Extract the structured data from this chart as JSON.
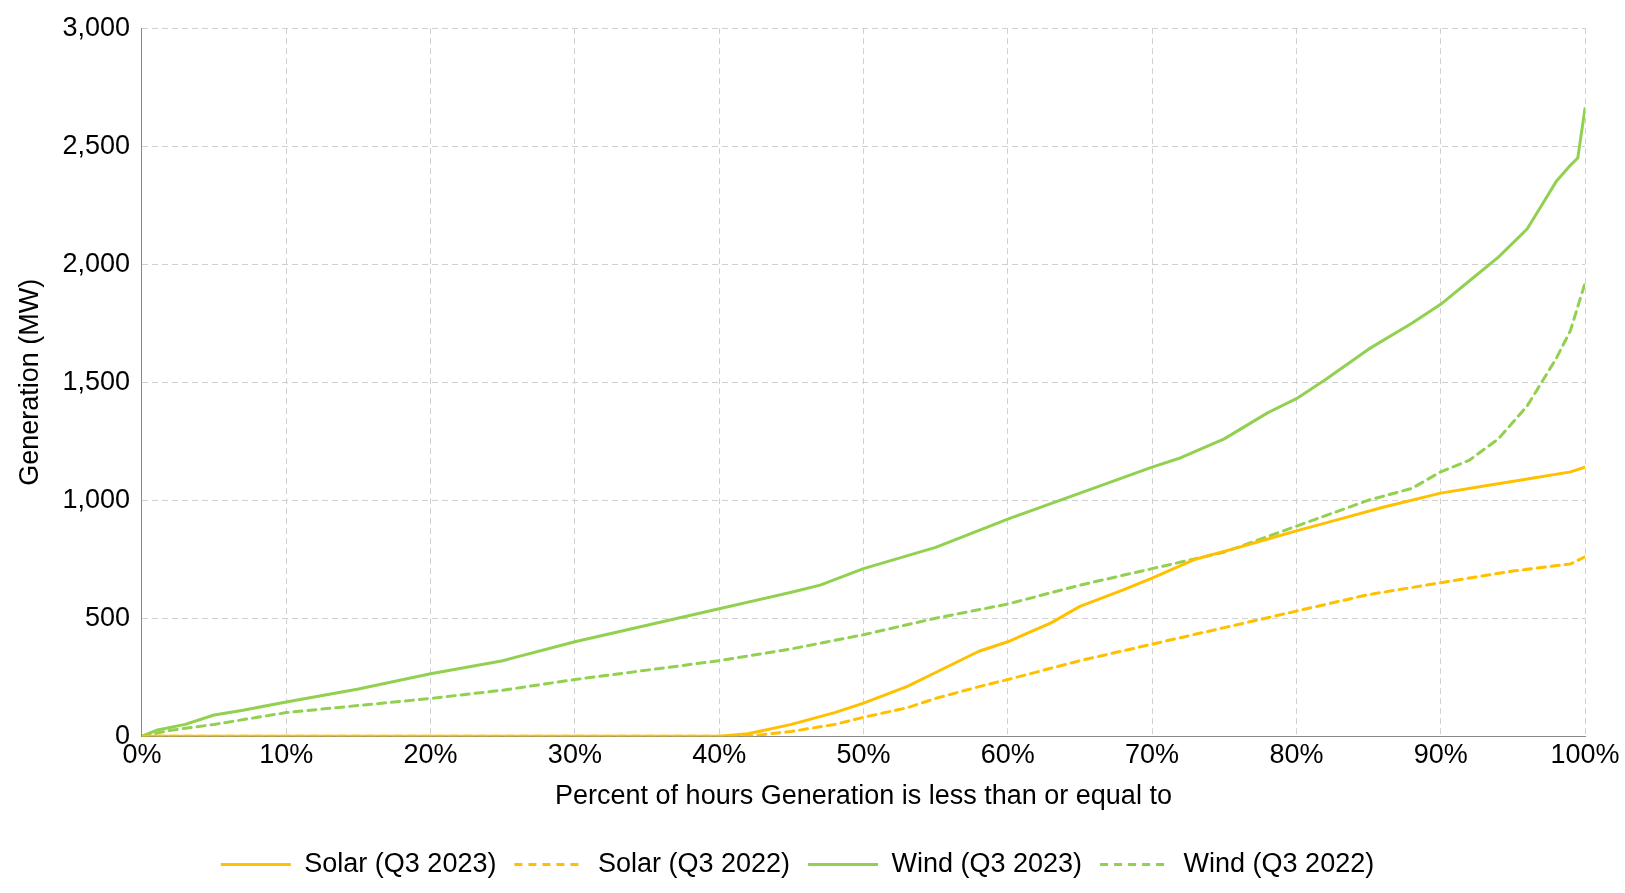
{
  "chart_data": {
    "type": "line",
    "xlabel": "Percent of hours Generation is less than or equal to",
    "ylabel": "Generation (MW)",
    "xlim": [
      0,
      100
    ],
    "xticks": [
      {
        "value": 0,
        "label": "0%"
      },
      {
        "value": 10,
        "label": "10%"
      },
      {
        "value": 20,
        "label": "20%"
      },
      {
        "value": 30,
        "label": "30%"
      },
      {
        "value": 40,
        "label": "40%"
      },
      {
        "value": 50,
        "label": "50%"
      },
      {
        "value": 60,
        "label": "60%"
      },
      {
        "value": 70,
        "label": "70%"
      },
      {
        "value": 80,
        "label": "80%"
      },
      {
        "value": 90,
        "label": "90%"
      },
      {
        "value": 100,
        "label": "100%"
      }
    ],
    "ylim": [
      0,
      3000
    ],
    "yticks": [
      {
        "value": 0,
        "label": "0"
      },
      {
        "value": 500,
        "label": "500"
      },
      {
        "value": 1000,
        "label": "1,000"
      },
      {
        "value": 1500,
        "label": "1,500"
      },
      {
        "value": 2000,
        "label": "2,000"
      },
      {
        "value": 2500,
        "label": "2,500"
      },
      {
        "value": 3000,
        "label": "3,000"
      }
    ],
    "grid": true,
    "legend": "bottom",
    "marker": "none",
    "series": [
      {
        "name": "Solar (Q3 2023)",
        "color": "#ffc000",
        "line_style": "solid",
        "x": [
          0,
          40,
          42,
          45,
          48,
          50,
          53,
          55,
          58,
          60,
          63,
          65,
          68,
          70,
          73,
          76,
          80,
          83,
          86,
          90,
          93,
          96,
          99,
          100
        ],
        "values": [
          0,
          0,
          10,
          50,
          100,
          140,
          210,
          270,
          360,
          400,
          480,
          550,
          620,
          670,
          750,
          800,
          870,
          920,
          970,
          1030,
          1060,
          1090,
          1120,
          1140
        ]
      },
      {
        "name": "Solar (Q3 2022)",
        "color": "#ffc000",
        "line_style": "dashed",
        "x": [
          0,
          42,
          45,
          48,
          50,
          53,
          55,
          58,
          60,
          65,
          70,
          75,
          80,
          85,
          90,
          95,
          99,
          100
        ],
        "values": [
          0,
          0,
          20,
          50,
          80,
          120,
          160,
          210,
          240,
          320,
          390,
          460,
          530,
          600,
          650,
          700,
          730,
          760
        ]
      },
      {
        "name": "Wind (Q3 2023)",
        "color": "#92d050",
        "line_style": "solid",
        "x": [
          0,
          1,
          3,
          5,
          7,
          10,
          15,
          20,
          25,
          30,
          35,
          40,
          45,
          47,
          50,
          55,
          60,
          65,
          70,
          72,
          75,
          78,
          80,
          82,
          85,
          88,
          90,
          92,
          94,
          96,
          97,
          98,
          99,
          99.5,
          100
        ],
        "values": [
          0,
          25,
          50,
          90,
          110,
          145,
          200,
          265,
          320,
          400,
          470,
          540,
          610,
          640,
          710,
          800,
          920,
          1030,
          1140,
          1180,
          1260,
          1370,
          1430,
          1510,
          1640,
          1750,
          1830,
          1930,
          2030,
          2150,
          2250,
          2350,
          2420,
          2450,
          2660
        ]
      },
      {
        "name": "Wind (Q3 2022)",
        "color": "#92d050",
        "line_style": "dashed",
        "x": [
          0,
          2,
          5,
          10,
          15,
          20,
          25,
          30,
          35,
          40,
          45,
          50,
          55,
          60,
          65,
          70,
          75,
          80,
          85,
          88,
          90,
          92,
          94,
          96,
          97,
          98,
          99,
          100
        ],
        "values": [
          0,
          25,
          50,
          100,
          130,
          160,
          195,
          240,
          280,
          320,
          370,
          430,
          500,
          560,
          640,
          710,
          780,
          890,
          1000,
          1050,
          1120,
          1170,
          1260,
          1400,
          1500,
          1600,
          1720,
          1920
        ]
      }
    ]
  }
}
